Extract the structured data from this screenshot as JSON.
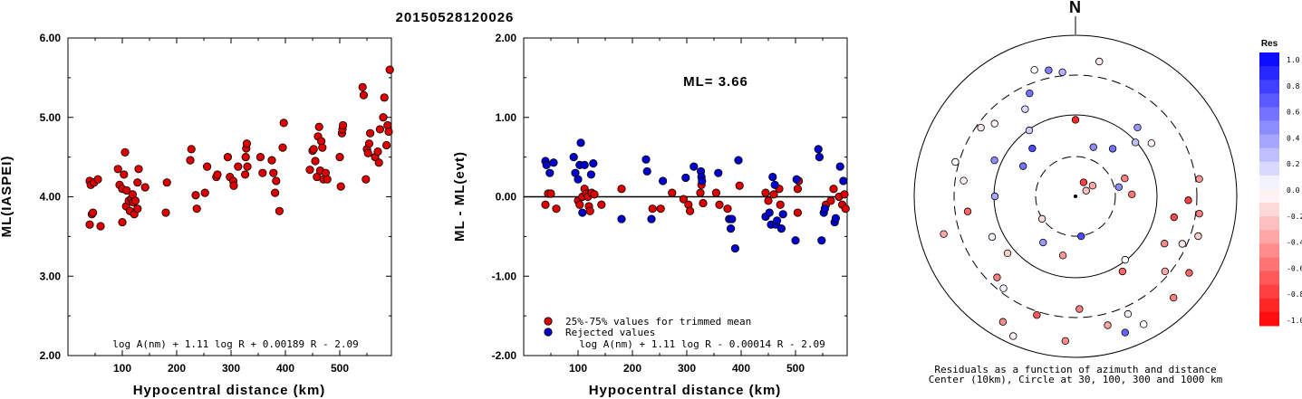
{
  "event_id": "20150528120026",
  "chart_data": [
    {
      "type": "scatter",
      "id": "left",
      "title": "20150528120026",
      "xlabel": "Hypocentral distance (km)",
      "ylabel": "ML(IASPEI)",
      "xlim": [
        0,
        595
      ],
      "ylim": [
        2.0,
        6.0
      ],
      "xticks": [
        "100",
        "200",
        "300",
        "400",
        "500"
      ],
      "yticks": [
        "2.00",
        "3.00",
        "4.00",
        "5.00",
        "6.00"
      ],
      "formula": "log A(nm) + 1.11 log R + 0.00189 R - 2.09",
      "series": [
        {
          "color": "#dd0000",
          "points": [
            [
              40,
              3.65
            ],
            [
              40,
              4.2
            ],
            [
              42,
              4.15
            ],
            [
              44,
              3.78
            ],
            [
              46,
              3.8
            ],
            [
              48,
              4.18
            ],
            [
              55,
              4.22
            ],
            [
              60,
              3.63
            ],
            [
              92,
              4.35
            ],
            [
              95,
              4.15
            ],
            [
              100,
              3.68
            ],
            [
              100,
              4.1
            ],
            [
              103,
              4.28
            ],
            [
              105,
              4.56
            ],
            [
              107,
              3.88
            ],
            [
              108,
              4.08
            ],
            [
              112,
              3.95
            ],
            [
              114,
              3.82
            ],
            [
              117,
              3.98
            ],
            [
              119,
              4.03
            ],
            [
              120,
              3.93
            ],
            [
              122,
              3.78
            ],
            [
              124,
              3.95
            ],
            [
              128,
              3.85
            ],
            [
              128,
              4.18
            ],
            [
              130,
              4.35
            ],
            [
              142,
              4.12
            ],
            [
              180,
              3.8
            ],
            [
              182,
              4.18
            ],
            [
              225,
              4.46
            ],
            [
              227,
              4.6
            ],
            [
              235,
              4.02
            ],
            [
              237,
              3.85
            ],
            [
              252,
              4.05
            ],
            [
              256,
              4.38
            ],
            [
              273,
              4.25
            ],
            [
              275,
              4.28
            ],
            [
              294,
              4.5
            ],
            [
              298,
              4.25
            ],
            [
              304,
              4.2
            ],
            [
              305,
              4.14
            ],
            [
              313,
              4.38
            ],
            [
              326,
              4.28
            ],
            [
              327,
              4.5
            ],
            [
              328,
              4.61
            ],
            [
              329,
              4.67
            ],
            [
              330,
              4.38
            ],
            [
              354,
              4.5
            ],
            [
              358,
              4.3
            ],
            [
              375,
              4.46
            ],
            [
              378,
              4.3
            ],
            [
              381,
              4.05
            ],
            [
              383,
              4.2
            ],
            [
              389,
              3.82
            ],
            [
              395,
              4.62
            ],
            [
              397,
              4.93
            ],
            [
              445,
              4.34
            ],
            [
              450,
              4.58
            ],
            [
              452,
              4.6
            ],
            [
              455,
              4.45
            ],
            [
              458,
              4.25
            ],
            [
              460,
              4.76
            ],
            [
              462,
              4.88
            ],
            [
              464,
              4.33
            ],
            [
              466,
              4.7
            ],
            [
              468,
              4.62
            ],
            [
              470,
              4.22
            ],
            [
              474,
              4.3
            ],
            [
              477,
              4.22
            ],
            [
              500,
              4.5
            ],
            [
              502,
              4.13
            ],
            [
              504,
              4.8
            ],
            [
              505,
              4.85
            ],
            [
              506,
              4.9
            ],
            [
              542,
              5.38
            ],
            [
              544,
              5.28
            ],
            [
              548,
              4.22
            ],
            [
              550,
              4.6
            ],
            [
              552,
              4.55
            ],
            [
              554,
              4.67
            ],
            [
              556,
              4.8
            ],
            [
              565,
              4.5
            ],
            [
              570,
              4.57
            ],
            [
              572,
              4.43
            ],
            [
              574,
              4.85
            ],
            [
              580,
              5.0
            ],
            [
              582,
              5.25
            ],
            [
              586,
              4.65
            ],
            [
              588,
              4.9
            ],
            [
              590,
              4.82
            ],
            [
              592,
              5.6
            ]
          ]
        }
      ]
    },
    {
      "type": "scatter",
      "id": "middle",
      "xlabel": "Hypocentral distance (km)",
      "ylabel": "ML - ML(evt)",
      "xlim": [
        0,
        595
      ],
      "ylim": [
        -2.0,
        2.0
      ],
      "xticks": [
        "100",
        "200",
        "300",
        "400",
        "500"
      ],
      "yticks": [
        "-2.00",
        "-1.00",
        "0.00",
        "1.00",
        "2.00"
      ],
      "ml_label": "ML= 3.66",
      "formula": "log A(nm) + 1.11 log R - 0.00014 R - 2.09",
      "legend": [
        "25%-75% values for trimmed mean",
        "Rejected values"
      ],
      "series": [
        {
          "name": "25%-75% values for trimmed mean",
          "color": "#dd0000",
          "points": [
            [
              40,
              -0.1
            ],
            [
              45,
              0.04
            ],
            [
              50,
              0.04
            ],
            [
              60,
              -0.15
            ],
            [
              100,
              -0.05
            ],
            [
              103,
              -0.1
            ],
            [
              108,
              0.0
            ],
            [
              112,
              0.1
            ],
            [
              115,
              0.04
            ],
            [
              118,
              0.0
            ],
            [
              120,
              -0.12
            ],
            [
              122,
              -0.18
            ],
            [
              125,
              0.05
            ],
            [
              130,
              0.03
            ],
            [
              143,
              -0.1
            ],
            [
              180,
              0.1
            ],
            [
              237,
              -0.15
            ],
            [
              252,
              -0.15
            ],
            [
              273,
              0.05
            ],
            [
              294,
              -0.03
            ],
            [
              303,
              -0.1
            ],
            [
              306,
              -0.18
            ],
            [
              325,
              0.05
            ],
            [
              327,
              0.15
            ],
            [
              330,
              -0.08
            ],
            [
              354,
              0.05
            ],
            [
              360,
              -0.1
            ],
            [
              375,
              -0.15
            ],
            [
              397,
              0.14
            ],
            [
              445,
              0.05
            ],
            [
              450,
              -0.05
            ],
            [
              460,
              0.03
            ],
            [
              470,
              0.1
            ],
            [
              472,
              -0.1
            ],
            [
              504,
              0.1
            ],
            [
              506,
              0.2
            ],
            [
              504,
              -0.2
            ],
            [
              556,
              -0.1
            ],
            [
              565,
              -0.05
            ],
            [
              570,
              0.1
            ],
            [
              580,
              0.0
            ],
            [
              586,
              -0.1
            ],
            [
              590,
              0.03
            ],
            [
              592,
              -0.15
            ]
          ]
        },
        {
          "name": "Rejected values",
          "color": "#0000cc",
          "points": [
            [
              40,
              0.45
            ],
            [
              42,
              0.4
            ],
            [
              48,
              0.3
            ],
            [
              55,
              0.43
            ],
            [
              92,
              0.5
            ],
            [
              95,
              0.3
            ],
            [
              100,
              0.22
            ],
            [
              103,
              0.4
            ],
            [
              105,
              0.68
            ],
            [
              108,
              -0.2
            ],
            [
              112,
              0.4
            ],
            [
              124,
              0.28
            ],
            [
              128,
              0.42
            ],
            [
              180,
              -0.28
            ],
            [
              225,
              0.47
            ],
            [
              227,
              0.32
            ],
            [
              235,
              -0.28
            ],
            [
              256,
              0.2
            ],
            [
              298,
              0.24
            ],
            [
              313,
              0.38
            ],
            [
              326,
              0.32
            ],
            [
              327,
              0.25
            ],
            [
              328,
              0.2
            ],
            [
              358,
              0.3
            ],
            [
              378,
              -0.28
            ],
            [
              381,
              -0.4
            ],
            [
              383,
              -0.28
            ],
            [
              389,
              -0.65
            ],
            [
              395,
              0.46
            ],
            [
              445,
              -0.25
            ],
            [
              452,
              -0.2
            ],
            [
              455,
              -0.35
            ],
            [
              458,
              0.25
            ],
            [
              462,
              0.15
            ],
            [
              464,
              -0.35
            ],
            [
              466,
              -0.3
            ],
            [
              474,
              -0.4
            ],
            [
              477,
              -0.22
            ],
            [
              500,
              -0.55
            ],
            [
              502,
              0.22
            ],
            [
              542,
              0.6
            ],
            [
              544,
              0.5
            ],
            [
              548,
              -0.55
            ],
            [
              552,
              -0.2
            ],
            [
              554,
              -0.15
            ],
            [
              572,
              -0.32
            ],
            [
              574,
              -0.27
            ],
            [
              582,
              0.38
            ],
            [
              588,
              0.2
            ]
          ]
        }
      ]
    }
  ],
  "polar": {
    "north_label": "N",
    "caption_line1": "Residuals as a function of azimuth and distance",
    "caption_line2": "Center (10km), Circle at 30, 100, 300 and 1000 km",
    "points": [
      [
        0,
        -38,
        -0.85
      ],
      [
        10,
        -68,
        -0.1
      ],
      [
        20,
        -26,
        0.45
      ],
      [
        30,
        -8,
        -0.75
      ],
      [
        38,
        30,
        0.55
      ],
      [
        42,
        46,
        0.4
      ],
      [
        48,
        40,
        0.25
      ],
      [
        55,
        -46,
        -0.05
      ],
      [
        58,
        -10,
        -0.35
      ],
      [
        62,
        -6,
        -0.25
      ],
      [
        70,
        -26,
        -0.5
      ],
      [
        78,
        22,
        0.45
      ],
      [
        82,
        -62,
        -0.4
      ],
      [
        88,
        -28,
        -0.55
      ],
      [
        92,
        -56,
        -0.75
      ],
      [
        98,
        -62,
        -0.5
      ],
      [
        102,
        -50,
        -0.7
      ],
      [
        108,
        -64,
        -0.2
      ],
      [
        114,
        -58,
        -0.1
      ],
      [
        118,
        -50,
        -0.45
      ],
      [
        124,
        -68,
        -0.6
      ],
      [
        130,
        -58,
        -0.35
      ],
      [
        136,
        -70,
        -0.5
      ],
      [
        142,
        -40,
        0.0
      ],
      [
        148,
        -44,
        -0.6
      ],
      [
        152,
        -72,
        0.0
      ],
      [
        156,
        -64,
        -0.05
      ],
      [
        160,
        -72,
        0.6
      ],
      [
        166,
        -66,
        -0.35
      ],
      [
        172,
        -20,
        0.7
      ],
      [
        178,
        -56,
        -0.5
      ],
      [
        184,
        -72,
        -0.45
      ],
      [
        192,
        -30,
        -0.4
      ],
      [
        198,
        -62,
        -0.65
      ],
      [
        204,
        -76,
        -0.05
      ],
      [
        210,
        -72,
        -0.45
      ],
      [
        215,
        -28,
        0.4
      ],
      [
        218,
        -58,
        0.05
      ],
      [
        224,
        -56,
        -0.5
      ],
      [
        230,
        -44,
        -0.2
      ],
      [
        236,
        -20,
        -0.15
      ],
      [
        244,
        -46,
        0.05
      ],
      [
        254,
        -68,
        -0.35
      ],
      [
        262,
        -54,
        -0.6
      ],
      [
        270,
        -40,
        0.35
      ],
      [
        278,
        -56,
        -0.05
      ],
      [
        286,
        -62,
        0.0
      ],
      [
        294,
        -44,
        0.45
      ],
      [
        300,
        -30,
        0.55
      ],
      [
        306,
        -58,
        -0.1
      ],
      [
        312,
        -54,
        -0.05
      ],
      [
        318,
        -32,
        0.7
      ],
      [
        325,
        -40,
        0.2
      ],
      [
        330,
        -50,
        0.15
      ],
      [
        336,
        -56,
        0.55
      ],
      [
        342,
        -66,
        0.0
      ],
      [
        348,
        -64,
        0.5
      ],
      [
        354,
        -62,
        0.3
      ]
    ],
    "legend_title": "Res",
    "legend_ticks": [
      "1.0",
      "0.8",
      "0.6",
      "0.4",
      "0.2",
      "0.0",
      "-0.2",
      "-0.4",
      "-0.6",
      "-0.8",
      "-1.0"
    ]
  }
}
